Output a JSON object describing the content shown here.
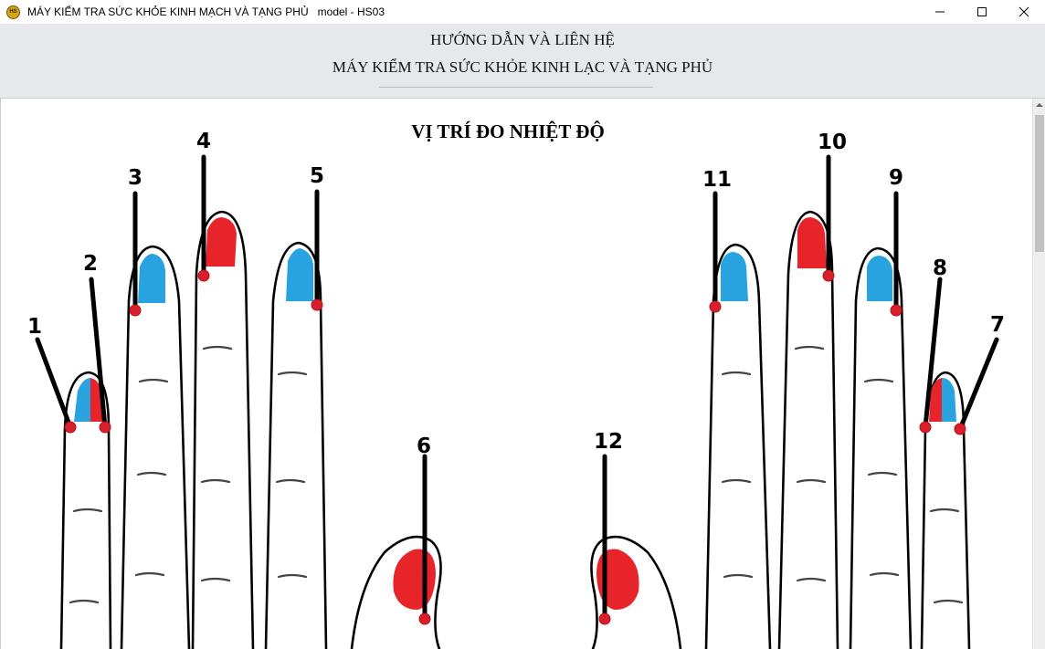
{
  "window": {
    "title": "MÁY KIỂM TRA SỨC KHỎE KINH MẠCH VÀ TẠNG PHỦ   model - HS03",
    "icon": "app-logo-icon",
    "controls": [
      "minimize-icon",
      "maximize-icon",
      "close-icon"
    ]
  },
  "header": {
    "line1": "HƯỚNG DẪN VÀ LIÊN HỆ",
    "line2": "MÁY KIỂM TRA SỨC KHỎE KINH LẠC VÀ TẠNG PHỦ"
  },
  "content": {
    "title": "VỊ TRÍ ĐO NHIỆT ĐỘ"
  },
  "points": {
    "p1": "1",
    "p2": "2",
    "p3": "3",
    "p4": "4",
    "p5": "5",
    "p6": "6",
    "p7": "7",
    "p8": "8",
    "p9": "9",
    "p10": "10",
    "p11": "11",
    "p12": "12"
  },
  "colors": {
    "nail_red": "#e8242b",
    "nail_blue": "#29a3df",
    "marker": "#d9202a",
    "header_bg": "#e6e8eb"
  }
}
